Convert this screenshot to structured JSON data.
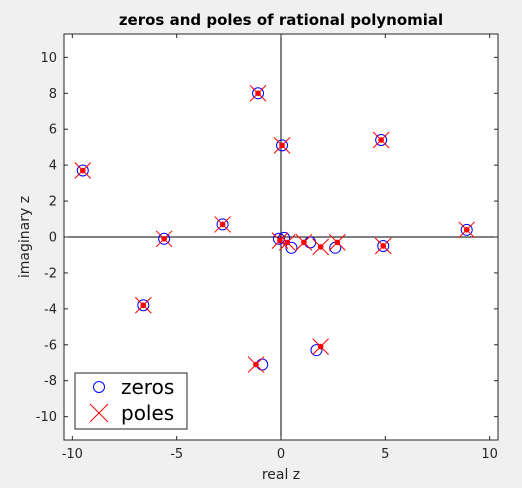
{
  "chart_data": {
    "type": "scatter",
    "title": "zeros and poles of rational polynomial",
    "xlabel": "real z",
    "ylabel": "imaginary z",
    "xlim": [
      -10.4,
      10.4
    ],
    "ylim": [
      -11.3,
      11.3
    ],
    "xticks": [
      -10,
      -5,
      0,
      5,
      10
    ],
    "yticks": [
      -10,
      -8,
      -6,
      -4,
      -2,
      0,
      2,
      4,
      6,
      8,
      10
    ],
    "grid": false,
    "legend_position": "bottom-left",
    "series": [
      {
        "name": "zeros",
        "marker": "circle",
        "color": "#0000ff",
        "points": [
          [
            -9.5,
            3.7
          ],
          [
            -6.6,
            -3.8
          ],
          [
            -5.6,
            -0.1
          ],
          [
            -2.8,
            0.7
          ],
          [
            -1.1,
            8.0
          ],
          [
            0.05,
            5.1
          ],
          [
            -0.1,
            -0.1
          ],
          [
            0.15,
            -0.05
          ],
          [
            0.5,
            -0.6
          ],
          [
            1.4,
            -0.3
          ],
          [
            2.6,
            -0.6
          ],
          [
            4.8,
            5.4
          ],
          [
            4.9,
            -0.5
          ],
          [
            8.9,
            0.4
          ],
          [
            -0.9,
            -7.1
          ],
          [
            1.7,
            -6.3
          ]
        ]
      },
      {
        "name": "poles",
        "marker": "x",
        "color": "#ff0000",
        "points": [
          [
            -9.5,
            3.7
          ],
          [
            -6.6,
            -3.8
          ],
          [
            -5.6,
            -0.1
          ],
          [
            -2.8,
            0.7
          ],
          [
            -1.1,
            8.0
          ],
          [
            0.05,
            5.1
          ],
          [
            -0.05,
            -0.2
          ],
          [
            0.3,
            -0.3
          ],
          [
            1.1,
            -0.3
          ],
          [
            1.9,
            -0.55
          ],
          [
            2.7,
            -0.3
          ],
          [
            4.8,
            5.4
          ],
          [
            4.9,
            -0.5
          ],
          [
            8.9,
            0.4
          ],
          [
            -1.2,
            -7.1
          ],
          [
            1.9,
            -6.1
          ]
        ]
      }
    ]
  }
}
